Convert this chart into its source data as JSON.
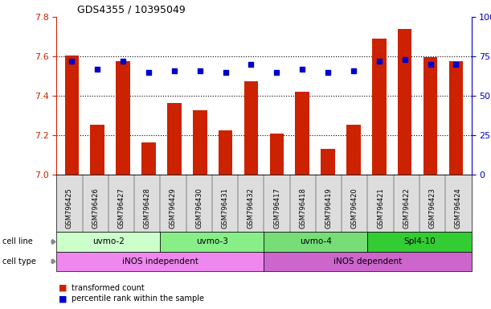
{
  "title": "GDS4355 / 10395049",
  "samples": [
    "GSM796425",
    "GSM796426",
    "GSM796427",
    "GSM796428",
    "GSM796429",
    "GSM796430",
    "GSM796431",
    "GSM796432",
    "GSM796417",
    "GSM796418",
    "GSM796419",
    "GSM796420",
    "GSM796421",
    "GSM796422",
    "GSM796423",
    "GSM796424"
  ],
  "red_values": [
    7.605,
    7.255,
    7.575,
    7.165,
    7.365,
    7.325,
    7.225,
    7.475,
    7.21,
    7.42,
    7.13,
    7.255,
    7.69,
    7.74,
    7.595,
    7.575
  ],
  "blue_values": [
    72,
    67,
    72,
    65,
    66,
    66,
    65,
    70,
    65,
    67,
    65,
    66,
    72,
    73,
    70,
    70
  ],
  "ylim_left": [
    7.0,
    7.8
  ],
  "ylim_right": [
    0,
    100
  ],
  "yticks_left": [
    7.0,
    7.2,
    7.4,
    7.6,
    7.8
  ],
  "yticks_right": [
    0,
    25,
    50,
    75,
    100
  ],
  "ytick_labels_right": [
    "0",
    "25",
    "50",
    "75",
    "100%"
  ],
  "grid_lines": [
    7.2,
    7.4,
    7.6
  ],
  "cell_line_groups": [
    {
      "label": "uvmo-2",
      "start": 0,
      "end": 3,
      "color": "#ccffcc"
    },
    {
      "label": "uvmo-3",
      "start": 4,
      "end": 7,
      "color": "#88ee88"
    },
    {
      "label": "uvmo-4",
      "start": 8,
      "end": 11,
      "color": "#77dd77"
    },
    {
      "label": "Spl4-10",
      "start": 12,
      "end": 15,
      "color": "#33cc33"
    }
  ],
  "cell_type_groups": [
    {
      "label": "iNOS independent",
      "start": 0,
      "end": 7,
      "color": "#ee88ee"
    },
    {
      "label": "iNOS dependent",
      "start": 8,
      "end": 15,
      "color": "#cc66cc"
    }
  ],
  "bar_color": "#cc2200",
  "dot_color": "#0000cc",
  "axis_color_left": "#cc2200",
  "axis_color_right": "#0000cc",
  "cell_line_label": "cell line",
  "cell_type_label": "cell type",
  "legend_red": "transformed count",
  "legend_blue": "percentile rank within the sample"
}
